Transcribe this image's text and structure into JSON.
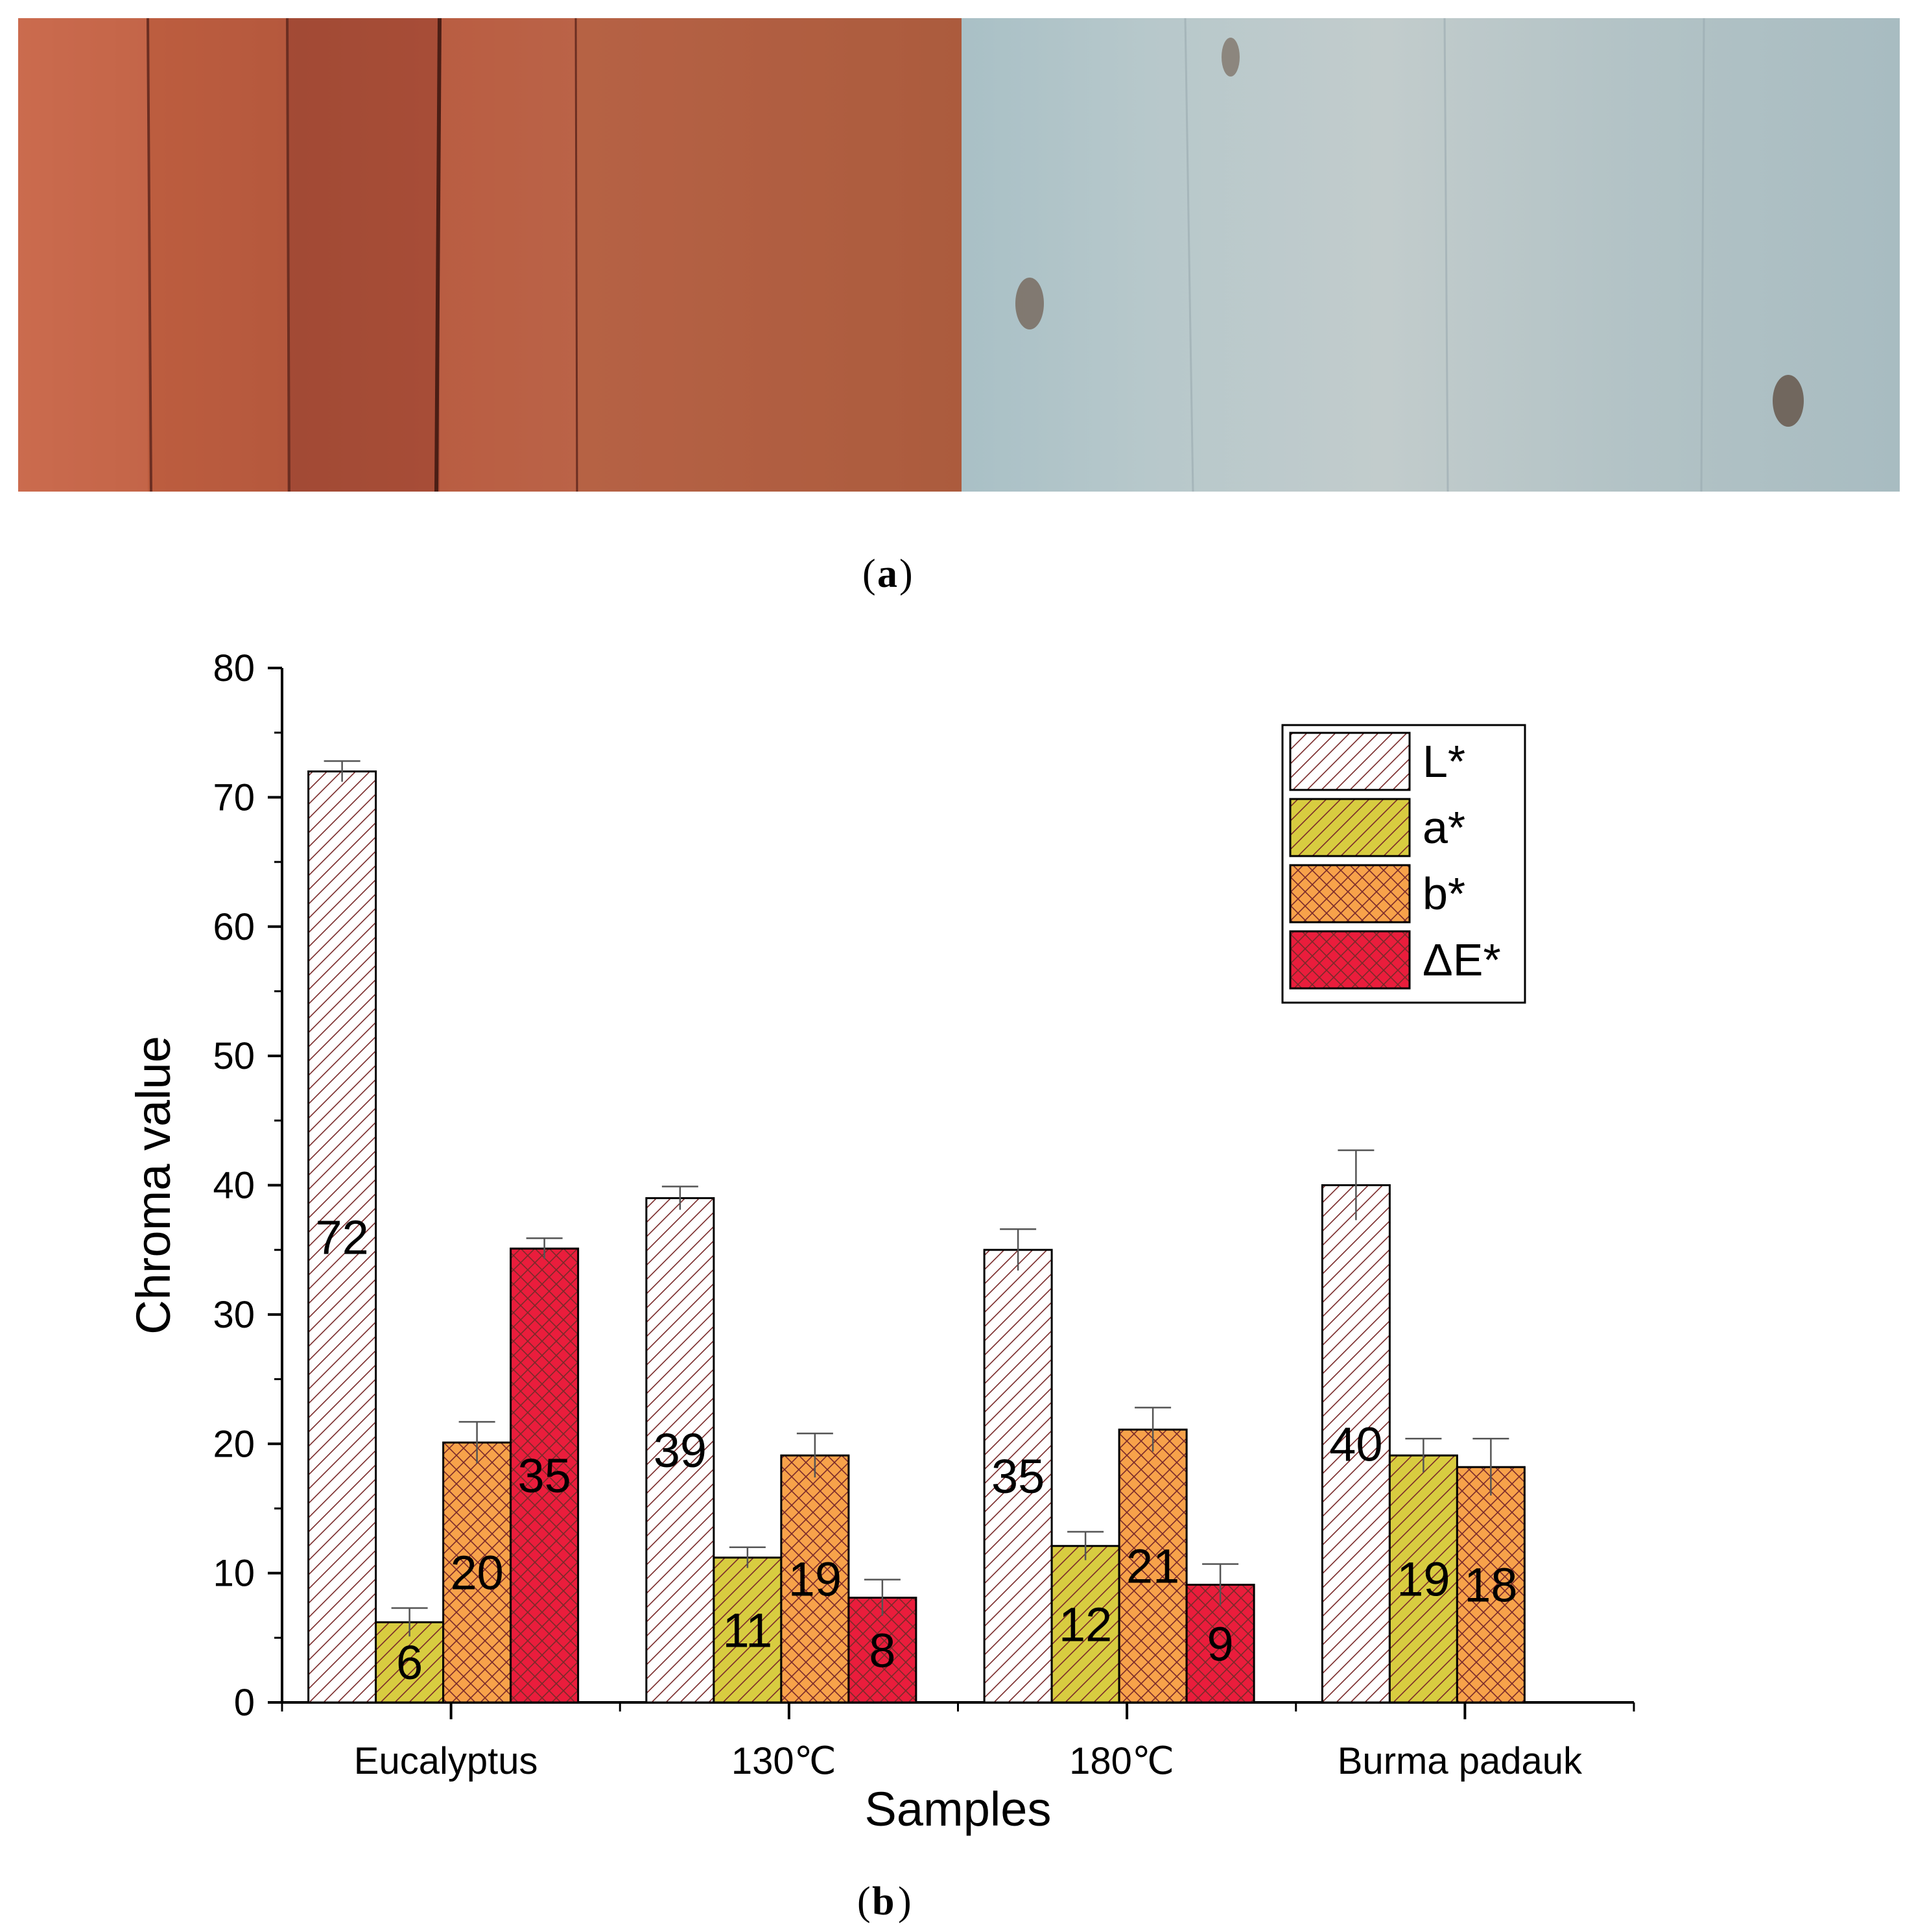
{
  "panel_a": {
    "label": "a",
    "photo_left": "red-brown wood boards",
    "photo_right": "grey-blue weathered wood boards"
  },
  "panel_b": {
    "label": "b"
  },
  "colors": {
    "L": "#ffffff",
    "a": "#d8cc40",
    "b": "#f7a24a",
    "dE": "#ea1d3c",
    "hatch": "#7a2a2a"
  },
  "chart_data": {
    "type": "bar",
    "title": "",
    "xlabel": "Samples",
    "ylabel": "Chroma value",
    "ylim": [
      0,
      80
    ],
    "yticks": [
      0,
      10,
      20,
      30,
      40,
      50,
      60,
      70,
      80
    ],
    "categories": [
      "Eucalyptus",
      "130℃",
      "180℃",
      "Burma padauk"
    ],
    "legend_position": "top-right",
    "series": [
      {
        "key": "L",
        "name": "L*",
        "values": [
          72,
          39,
          35,
          40
        ],
        "errors": [
          0.8,
          0.9,
          1.6,
          2.7
        ],
        "labels": [
          "72",
          "39",
          "35",
          "40"
        ],
        "pattern": "diag"
      },
      {
        "key": "a",
        "name": "a*",
        "values": [
          6.2,
          11.2,
          12.1,
          19.1
        ],
        "errors": [
          1.1,
          0.8,
          1.1,
          1.3
        ],
        "labels": [
          "6",
          "11",
          "12",
          "19"
        ],
        "pattern": "diag"
      },
      {
        "key": "b",
        "name": "b*",
        "values": [
          20.1,
          19.1,
          21.1,
          18.2
        ],
        "errors": [
          1.6,
          1.7,
          1.7,
          2.2
        ],
        "labels": [
          "20",
          "19",
          "21",
          "18"
        ],
        "pattern": "cross"
      },
      {
        "key": "dE",
        "name": "ΔE*",
        "values": [
          35.1,
          8.1,
          9.1,
          null
        ],
        "errors": [
          0.8,
          1.4,
          1.6,
          null
        ],
        "labels": [
          "35",
          "8",
          "9",
          ""
        ],
        "pattern": "cross"
      }
    ]
  }
}
